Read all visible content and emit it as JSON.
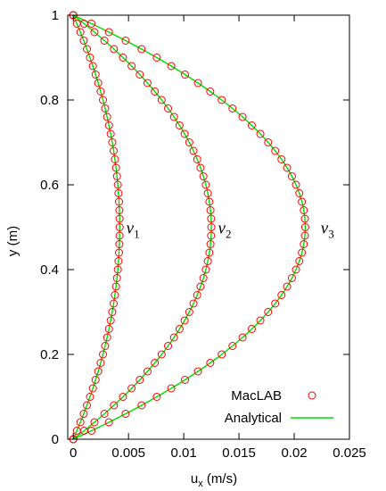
{
  "chart_data": {
    "type": "line",
    "xlabel": "u",
    "xlabel_subscript": "x",
    "xlabel_unit": "(m/s)",
    "ylabel": "y (m)",
    "xlim": [
      -0.0005,
      0.025
    ],
    "ylim": [
      0,
      1
    ],
    "xticks": [
      0,
      0.005,
      0.01,
      0.015,
      0.02,
      0.025
    ],
    "xtick_labels": [
      "0",
      "0.005",
      "0.01",
      "0.015",
      "0.02",
      "0.025"
    ],
    "yticks": [
      0,
      0.2,
      0.4,
      0.6,
      0.8,
      1
    ],
    "ytick_labels": [
      "0",
      "0.2",
      "0.4",
      "0.6",
      "0.8",
      "1"
    ],
    "grid": false,
    "legend_placement": "bottom-right",
    "legend": [
      {
        "label": "MacLAB",
        "kind": "markers",
        "color": "#ff0000"
      },
      {
        "label": "Analytical",
        "kind": "line",
        "color": "#00dd00"
      }
    ],
    "point_count_per_profile": 51,
    "profiles": [
      {
        "label": "ν",
        "subscript": "1",
        "umax": 0.0042,
        "label_position": [
          0.0048,
          0.5
        ]
      },
      {
        "label": "ν",
        "subscript": "2",
        "umax": 0.0125,
        "label_position": [
          0.0131,
          0.5
        ]
      },
      {
        "label": "ν",
        "subscript": "3",
        "umax": 0.021,
        "label_position": [
          0.0224,
          0.5
        ]
      }
    ]
  }
}
